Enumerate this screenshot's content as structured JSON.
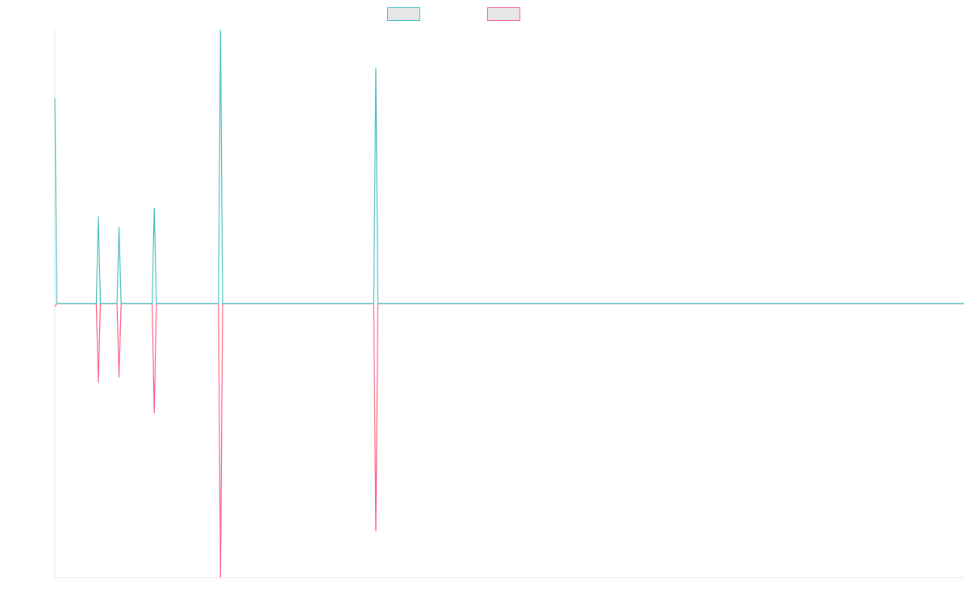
{
  "chart_data": {
    "type": "line",
    "title": "",
    "xlabel": "",
    "ylabel": "",
    "grid": false,
    "legend_position": "top-center",
    "xlim": [
      0,
      439
    ],
    "ylim": [
      -1.0,
      1.0
    ],
    "series": [
      {
        "color": "#4bc0c0",
        "points": [
          [
            0,
            0.75
          ],
          [
            1,
            0.0
          ],
          [
            20,
            0.0
          ],
          [
            21,
            0.32
          ],
          [
            22,
            0.0
          ],
          [
            30,
            0.0
          ],
          [
            31,
            0.28
          ],
          [
            32,
            0.0
          ],
          [
            47,
            0.0
          ],
          [
            48,
            0.35
          ],
          [
            49,
            0.0
          ],
          [
            79,
            0.0
          ],
          [
            80,
            1.0
          ],
          [
            81,
            0.0
          ],
          [
            154,
            0.0
          ],
          [
            155,
            0.86
          ],
          [
            156,
            0.0
          ],
          [
            439,
            0.0
          ]
        ]
      },
      {
        "color": "#ff6384",
        "points": [
          [
            0,
            -0.01
          ],
          [
            1,
            0.0
          ],
          [
            20,
            0.0
          ],
          [
            21,
            -0.29
          ],
          [
            22,
            0.0
          ],
          [
            30,
            0.0
          ],
          [
            31,
            -0.27
          ],
          [
            32,
            0.0
          ],
          [
            47,
            0.0
          ],
          [
            48,
            -0.4
          ],
          [
            49,
            0.0
          ],
          [
            79,
            0.0
          ],
          [
            80,
            -1.0
          ],
          [
            81,
            0.0
          ],
          [
            154,
            0.0
          ],
          [
            155,
            -0.83
          ],
          [
            156,
            0.0
          ],
          [
            439,
            0.0
          ]
        ]
      }
    ]
  },
  "style": {
    "legend_fill": "#e6e6e6",
    "axis_color": "#e4e4e4"
  }
}
